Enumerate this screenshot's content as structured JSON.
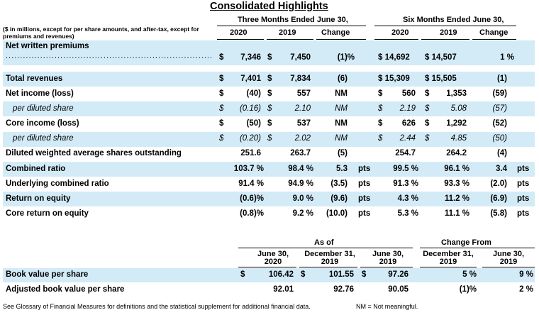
{
  "title": "Consolidated Highlights",
  "units_note": "($ in millions, except for per share amounts, and after-tax, except for premiums and revenues)",
  "period_headers": {
    "three_months": "Three Months Ended June 30,",
    "six_months": "Six Months Ended June 30,"
  },
  "column_headers": {
    "q_2020": "2020",
    "q_2019": "2019",
    "q_change": "Change",
    "h_2020": "2020",
    "h_2019": "2019",
    "h_change": "Change"
  },
  "nwp": {
    "label": "Net written premiums",
    "leader": "...................................................................................................",
    "cells": [
      "$",
      "7,346",
      "$",
      "7,450",
      "(1)%",
      "$ 14,692",
      "$ 14,507",
      "1 %"
    ]
  },
  "rows": [
    {
      "label": "Total revenues",
      "cells": [
        "$",
        "7,401",
        "$",
        "7,834",
        "(6)",
        "",
        "$ 15,309",
        "$ 15,505",
        "(1)",
        ""
      ]
    },
    {
      "label": "Net income (loss)",
      "cells": [
        "$",
        "(40)",
        "$",
        "557",
        "NM",
        "$",
        "560",
        "$",
        "1,353",
        "(59)",
        ""
      ]
    },
    {
      "label": "per diluted share",
      "cells": [
        "$",
        "(0.16)",
        "$",
        "2.10",
        "NM",
        "$",
        "2.19",
        "$",
        "5.08",
        "(57)",
        ""
      ]
    },
    {
      "label": "Core income (loss)",
      "cells": [
        "$",
        "(50)",
        "$",
        "537",
        "NM",
        "$",
        "626",
        "$",
        "1,292",
        "(52)",
        ""
      ]
    },
    {
      "label": "per diluted share",
      "cells": [
        "$",
        "(0.20)",
        "$",
        "2.02",
        "NM",
        "$",
        "2.44",
        "$",
        "4.85",
        "(50)",
        ""
      ]
    },
    {
      "label": "Diluted weighted average shares outstanding",
      "cells": [
        "",
        "251.6",
        "",
        "263.7",
        "(5)",
        "",
        "",
        "254.7",
        "",
        "264.2",
        "(4)",
        ""
      ]
    },
    {
      "label": "Combined ratio",
      "cells": [
        "",
        "103.7 %",
        "",
        "98.4 %",
        "5.3",
        "pts",
        "",
        "99.5 %",
        "",
        "96.1 %",
        "3.4",
        "pts"
      ]
    },
    {
      "label": "Underlying combined ratio",
      "cells": [
        "",
        "91.4 %",
        "",
        "94.9 %",
        "(3.5)",
        "pts",
        "",
        "91.3 %",
        "",
        "93.3 %",
        "(2.0)",
        "pts"
      ]
    },
    {
      "label": "Return on equity",
      "cells": [
        "",
        "(0.6)%",
        "",
        "9.0 %",
        "(9.6)",
        "pts",
        "",
        "4.3 %",
        "",
        "11.2 %",
        "(6.9)",
        "pts"
      ]
    },
    {
      "label": "Core return on equity",
      "cells": [
        "",
        "(0.8)%",
        "",
        "9.2 %",
        "(10.0)",
        "pts",
        "",
        "5.3 %",
        "",
        "11.1 %",
        "(5.8)",
        "pts"
      ]
    }
  ],
  "book_value": {
    "as_of": "As of",
    "change_from": "Change From",
    "headers": [
      {
        "line1": "June 30,",
        "line2": "2020"
      },
      {
        "line1": "December 31,",
        "line2": "2019"
      },
      {
        "line1": "June 30,",
        "line2": "2019"
      },
      {
        "line1": "December 31,",
        "line2": "2019"
      },
      {
        "line1": "June 30,",
        "line2": "2019"
      }
    ],
    "rows": [
      {
        "label": "Book value per share",
        "cells": [
          "$",
          "106.42",
          "$",
          "101.55",
          "$",
          "97.26",
          "5 %",
          "9 %"
        ]
      },
      {
        "label": "Adjusted book value per share",
        "cells": [
          "",
          "92.01",
          "",
          "92.76",
          "",
          "90.05",
          "(1)%",
          "2 %"
        ]
      }
    ]
  },
  "footnotes": {
    "left": "See Glossary of Financial Measures for definitions and the statistical supplement for additional financial data.",
    "right": "NM = Not meaningful."
  },
  "colors": {
    "band": "#d3ebf7",
    "text": "#000000"
  }
}
